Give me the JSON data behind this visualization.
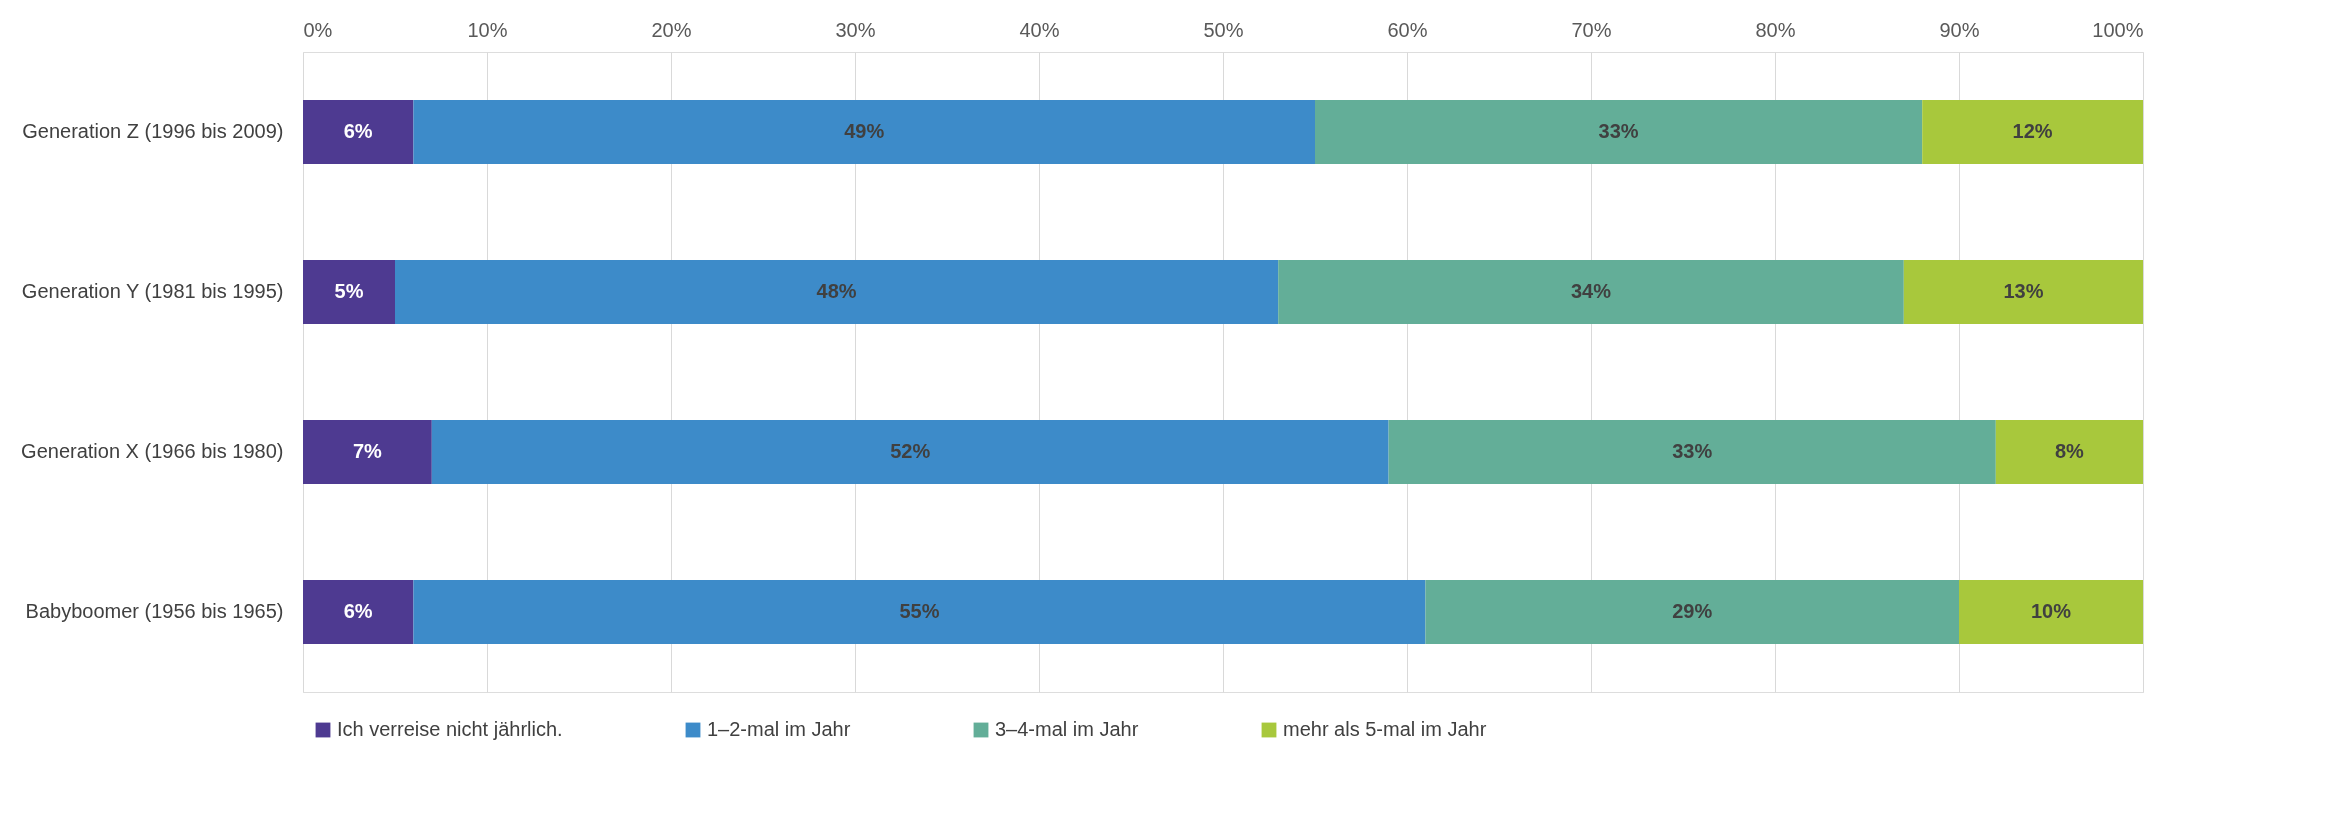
{
  "chart_data": {
    "type": "bar",
    "orientation": "horizontal",
    "stacked": true,
    "categories": [
      "Generation Z (1996 bis 2009)",
      "Generation Y (1981 bis 1995)",
      "Generation X (1966 bis 1980)",
      "Babyboomer (1956 bis 1965)"
    ],
    "series": [
      {
        "name": "Ich verreise nicht jährlich.",
        "color": "#4e3a91",
        "values": [
          6,
          5,
          7,
          6
        ],
        "value_labels": [
          "6%",
          "5%",
          "7%",
          "6%"
        ]
      },
      {
        "name": "1–2-mal im Jahr",
        "color": "#3d8bc9",
        "values": [
          49,
          48,
          52,
          55
        ],
        "value_labels": [
          "49%",
          "48%",
          "52%",
          "55%"
        ]
      },
      {
        "name": "3–4-mal im Jahr",
        "color": "#63ae98",
        "values": [
          33,
          34,
          33,
          29
        ],
        "value_labels": [
          "33%",
          "34%",
          "33%",
          "29%"
        ]
      },
      {
        "name": "mehr als 5-mal im Jahr",
        "color": "#a8c83c",
        "values": [
          12,
          13,
          8,
          10
        ],
        "value_labels": [
          "12%",
          "13%",
          "8%",
          "10%"
        ]
      }
    ],
    "xlim": [
      0,
      100
    ],
    "xticks": [
      {
        "value": 0,
        "label": "0%"
      },
      {
        "value": 10,
        "label": "10%"
      },
      {
        "value": 20,
        "label": "20%"
      },
      {
        "value": 30,
        "label": "30%"
      },
      {
        "value": 40,
        "label": "40%"
      },
      {
        "value": 50,
        "label": "50%"
      },
      {
        "value": 60,
        "label": "60%"
      },
      {
        "value": 70,
        "label": "70%"
      },
      {
        "value": 80,
        "label": "80%"
      },
      {
        "value": 90,
        "label": "90%"
      },
      {
        "value": 100,
        "label": "100%"
      }
    ],
    "grid": "x",
    "legend": "bottom"
  }
}
